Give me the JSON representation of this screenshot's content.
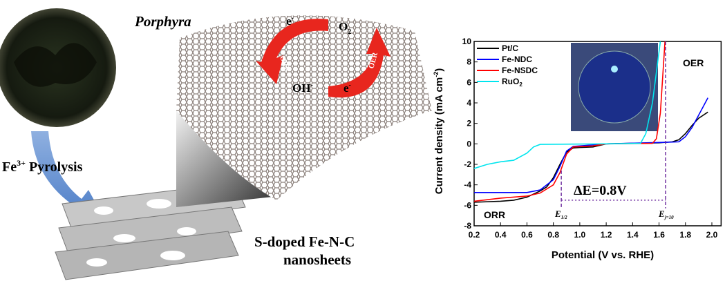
{
  "illustration": {
    "porphyra_label": "Porphyra",
    "pyrolysis_label_prefix": "Fe",
    "pyrolysis_label_sup": "3+",
    "pyrolysis_label_suffix": " Pyrolysis",
    "product_line1": "S-doped Fe-N-C",
    "product_line2": "nanosheets",
    "orr_arrow": "ORR",
    "oer_arrow": "OER",
    "electron": "e",
    "electron_sup": "-",
    "o2": "O",
    "o2_sub": "2",
    "oh": "OH",
    "oh_sup": "-"
  },
  "chart_data": {
    "type": "line",
    "xlabel": "Potential (V vs. RHE)",
    "ylabel": "Current density (mA cm",
    "ylabel_sup": "-2",
    "ylabel_end": ")",
    "xlim": [
      0.2,
      2.07
    ],
    "ylim": [
      -8,
      10
    ],
    "xticks": [
      "0.2",
      "0.4",
      "0.6",
      "0.8",
      "1.0",
      "1.2",
      "1.4",
      "1.6",
      "1.8",
      "2.0"
    ],
    "yticks": [
      "-8",
      "-6",
      "-4",
      "-2",
      "0",
      "2",
      "4",
      "6",
      "8",
      "10"
    ],
    "legend_position": "top-left",
    "annotations": {
      "orr": "ORR",
      "oer": "OER",
      "delta_e": "ΔE=0.8V",
      "e_half": "E",
      "e_half_sub": "1/2",
      "e_j10": "E",
      "e_j10_sub": "j=10",
      "e_half_x": 0.86,
      "e_j10_x": 1.65
    },
    "series": [
      {
        "name": "Pt/C",
        "color": "#000000",
        "points": [
          [
            0.2,
            -5.7
          ],
          [
            0.4,
            -5.6
          ],
          [
            0.5,
            -5.5
          ],
          [
            0.6,
            -5.2
          ],
          [
            0.7,
            -4.6
          ],
          [
            0.75,
            -4.2
          ],
          [
            0.8,
            -3.3
          ],
          [
            0.85,
            -2
          ],
          [
            0.9,
            -0.8
          ],
          [
            0.95,
            -0.4
          ],
          [
            1.0,
            -0.35
          ],
          [
            1.1,
            -0.3
          ],
          [
            1.2,
            0
          ],
          [
            1.6,
            0.1
          ],
          [
            1.7,
            0.2
          ],
          [
            1.75,
            0.4
          ],
          [
            1.8,
            1.0
          ],
          [
            1.85,
            1.8
          ],
          [
            1.9,
            2.5
          ],
          [
            1.97,
            3.1
          ]
        ]
      },
      {
        "name": "Fe-NDC",
        "color": "#0000ff",
        "points": [
          [
            0.2,
            -4.75
          ],
          [
            0.6,
            -4.75
          ],
          [
            0.7,
            -4.5
          ],
          [
            0.8,
            -3.5
          ],
          [
            0.85,
            -2.2
          ],
          [
            0.9,
            -0.7
          ],
          [
            0.95,
            -0.25
          ],
          [
            1.0,
            -0.2
          ],
          [
            1.2,
            0
          ],
          [
            1.65,
            0.15
          ],
          [
            1.75,
            0.2
          ],
          [
            1.8,
            0.7
          ],
          [
            1.85,
            1.6
          ],
          [
            1.9,
            2.8
          ],
          [
            1.97,
            4.5
          ]
        ]
      },
      {
        "name": "Fe-NSDC",
        "color": "#ff0000",
        "points": [
          [
            0.2,
            -5.6
          ],
          [
            0.4,
            -5.3
          ],
          [
            0.6,
            -5.1
          ],
          [
            0.7,
            -4.8
          ],
          [
            0.8,
            -4
          ],
          [
            0.85,
            -2.8
          ],
          [
            0.9,
            -1
          ],
          [
            0.95,
            -0.3
          ],
          [
            1.1,
            -0.2
          ],
          [
            1.2,
            0
          ],
          [
            1.55,
            0.05
          ],
          [
            1.58,
            0.5
          ],
          [
            1.61,
            3
          ],
          [
            1.63,
            7
          ],
          [
            1.645,
            10
          ]
        ]
      },
      {
        "name": "RuO2",
        "label": "RuO",
        "label_sub": "2",
        "color": "#00e5ee",
        "points": [
          [
            0.2,
            -2.4
          ],
          [
            0.3,
            -2.0
          ],
          [
            0.4,
            -1.75
          ],
          [
            0.5,
            -1.6
          ],
          [
            0.6,
            -0.9
          ],
          [
            0.65,
            -0.3
          ],
          [
            0.7,
            -0.05
          ],
          [
            1.2,
            0
          ],
          [
            1.46,
            0.05
          ],
          [
            1.5,
            1
          ],
          [
            1.55,
            4
          ],
          [
            1.58,
            7
          ],
          [
            1.61,
            10
          ]
        ]
      }
    ]
  }
}
